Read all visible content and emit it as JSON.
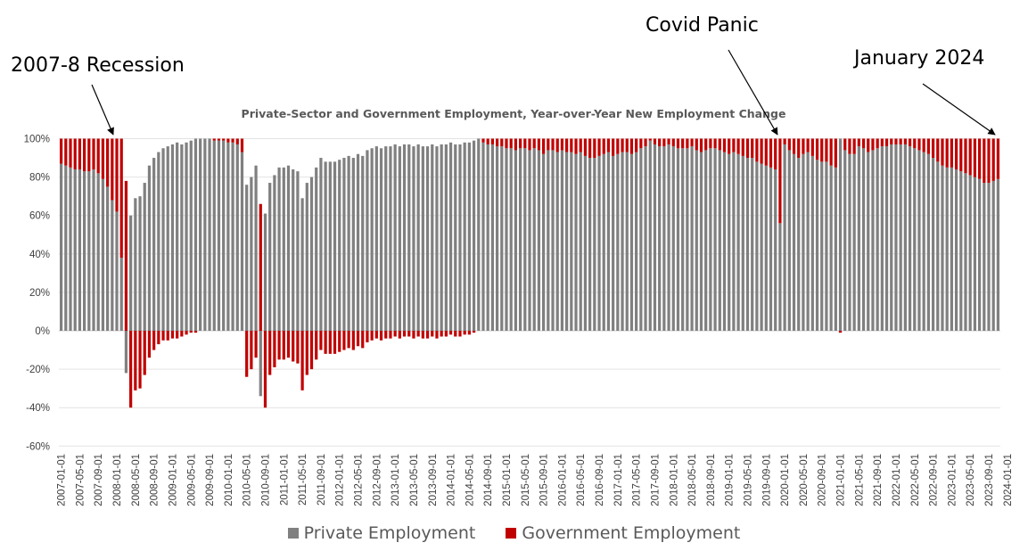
{
  "annotations": {
    "recession": "2007-8 Recession",
    "covid": "Covid Panic",
    "jan2024": "January 2024"
  },
  "chart_data": {
    "type": "bar",
    "stacked": true,
    "title": "Private-Sector and Government Employment, Year-over-Year New Employment Change",
    "xlabel": "",
    "ylabel": "",
    "ylim": [
      -0.6,
      1.0
    ],
    "y_ticks": [
      -0.6,
      -0.4,
      -0.2,
      0,
      0.2,
      0.4,
      0.6,
      0.8,
      1.0
    ],
    "y_tick_labels": [
      "-60%",
      "-40%",
      "-20%",
      "0%",
      "20%",
      "40%",
      "60%",
      "80%",
      "100%"
    ],
    "grid": true,
    "legend_position": "bottom",
    "x_start": "2007-01",
    "x_end": "2024-01",
    "x_tick_labels": [
      "2007-01-01",
      "2007-05-01",
      "2007-09-01",
      "2008-01-01",
      "2008-05-01",
      "2008-09-01",
      "2009-01-01",
      "2009-05-01",
      "2009-09-01",
      "2010-01-01",
      "2010-05-01",
      "2010-09-01",
      "2011-01-01",
      "2011-05-01",
      "2011-09-01",
      "2012-01-01",
      "2012-05-01",
      "2012-09-01",
      "2013-01-01",
      "2013-05-01",
      "2013-09-01",
      "2014-01-01",
      "2014-05-01",
      "2014-09-01",
      "2015-01-01",
      "2015-05-01",
      "2015-09-01",
      "2016-01-01",
      "2016-05-01",
      "2016-09-01",
      "2017-01-01",
      "2017-05-01",
      "2017-09-01",
      "2018-01-01",
      "2018-05-01",
      "2018-09-01",
      "2019-01-01",
      "2019-05-01",
      "2019-09-01",
      "2020-01-01",
      "2020-05-01",
      "2020-09-01",
      "2021-01-01",
      "2021-05-01",
      "2021-09-01",
      "2022-01-01",
      "2022-05-01",
      "2022-09-01",
      "2023-01-01",
      "2023-05-01",
      "2023-09-01",
      "2024-01-01"
    ],
    "series": [
      {
        "name": "Private Employment",
        "color": "#808080",
        "values": [
          0.87,
          0.86,
          0.85,
          0.84,
          0.84,
          0.83,
          0.83,
          0.84,
          0.82,
          0.79,
          0.75,
          0.68,
          0.62,
          0.38,
          -0.22,
          0.6,
          0.69,
          0.7,
          0.77,
          0.86,
          0.9,
          0.93,
          0.95,
          0.96,
          0.97,
          0.98,
          0.97,
          0.98,
          0.99,
          1.0,
          1.0,
          1.0,
          1.0,
          0.99,
          0.99,
          0.99,
          0.98,
          0.98,
          0.97,
          0.93,
          0.76,
          0.8,
          0.86,
          -0.34,
          0.61,
          0.77,
          0.81,
          0.85,
          0.85,
          0.86,
          0.84,
          0.83,
          0.69,
          0.77,
          0.8,
          0.85,
          0.9,
          0.88,
          0.88,
          0.88,
          0.89,
          0.9,
          0.91,
          0.9,
          0.92,
          0.91,
          0.94,
          0.95,
          0.96,
          0.95,
          0.96,
          0.96,
          0.97,
          0.96,
          0.97,
          0.97,
          0.96,
          0.97,
          0.96,
          0.96,
          0.97,
          0.96,
          0.97,
          0.97,
          0.98,
          0.97,
          0.97,
          0.98,
          0.98,
          0.99,
          1.0,
          0.98,
          0.97,
          0.97,
          0.96,
          0.96,
          0.95,
          0.95,
          0.94,
          0.95,
          0.95,
          0.94,
          0.95,
          0.94,
          0.92,
          0.94,
          0.94,
          0.93,
          0.94,
          0.93,
          0.93,
          0.92,
          0.93,
          0.91,
          0.9,
          0.9,
          0.91,
          0.92,
          0.93,
          0.91,
          0.92,
          0.93,
          0.93,
          0.92,
          0.93,
          0.95,
          0.96,
          0.99,
          0.97,
          0.96,
          0.96,
          0.97,
          0.96,
          0.95,
          0.95,
          0.95,
          0.96,
          0.94,
          0.93,
          0.94,
          0.95,
          0.95,
          0.94,
          0.93,
          0.92,
          0.93,
          0.92,
          0.91,
          0.9,
          0.9,
          0.88,
          0.87,
          0.86,
          0.85,
          0.84,
          0.56,
          0.97,
          0.94,
          0.92,
          0.9,
          0.92,
          0.93,
          0.91,
          0.89,
          0.88,
          0.88,
          0.86,
          0.85,
          1.0,
          0.94,
          0.92,
          0.92,
          0.96,
          0.95,
          0.93,
          0.94,
          0.95,
          0.96,
          0.96,
          0.97,
          0.97,
          0.97,
          0.97,
          0.96,
          0.95,
          0.94,
          0.93,
          0.92,
          0.9,
          0.88,
          0.86,
          0.85,
          0.85,
          0.84,
          0.83,
          0.82,
          0.81,
          0.8,
          0.79,
          0.77,
          0.77,
          0.78,
          0.79
        ]
      },
      {
        "name": "Government Employment",
        "color": "#c00000",
        "values": [
          0.13,
          0.14,
          0.15,
          0.16,
          0.16,
          0.17,
          0.17,
          0.16,
          0.18,
          0.21,
          0.25,
          0.32,
          0.38,
          0.62,
          0.78,
          -0.4,
          -0.31,
          -0.3,
          -0.23,
          -0.14,
          -0.1,
          -0.07,
          -0.05,
          -0.05,
          -0.04,
          -0.04,
          -0.03,
          -0.02,
          -0.01,
          -0.01,
          0.0,
          0.0,
          0.0,
          0.01,
          0.01,
          0.01,
          0.02,
          0.02,
          0.03,
          0.07,
          -0.24,
          -0.2,
          -0.14,
          0.66,
          -0.4,
          -0.23,
          -0.19,
          -0.15,
          -0.15,
          -0.14,
          -0.16,
          -0.17,
          -0.31,
          -0.23,
          -0.2,
          -0.15,
          -0.1,
          -0.12,
          -0.12,
          -0.12,
          -0.11,
          -0.1,
          -0.09,
          -0.1,
          -0.08,
          -0.09,
          -0.06,
          -0.05,
          -0.04,
          -0.05,
          -0.04,
          -0.04,
          -0.03,
          -0.04,
          -0.03,
          -0.03,
          -0.04,
          -0.03,
          -0.04,
          -0.04,
          -0.03,
          -0.04,
          -0.03,
          -0.03,
          -0.02,
          -0.03,
          -0.03,
          -0.02,
          -0.02,
          -0.01,
          0.0,
          0.02,
          0.03,
          0.03,
          0.04,
          0.04,
          0.05,
          0.05,
          0.06,
          0.05,
          0.05,
          0.06,
          0.05,
          0.06,
          0.08,
          0.06,
          0.06,
          0.07,
          0.06,
          0.07,
          0.07,
          0.08,
          0.07,
          0.09,
          0.1,
          0.1,
          0.09,
          0.08,
          0.07,
          0.09,
          0.08,
          0.07,
          0.07,
          0.08,
          0.07,
          0.05,
          0.04,
          0.01,
          0.03,
          0.04,
          0.04,
          0.03,
          0.04,
          0.05,
          0.05,
          0.05,
          0.04,
          0.06,
          0.07,
          0.06,
          0.05,
          0.05,
          0.06,
          0.07,
          0.08,
          0.07,
          0.08,
          0.09,
          0.1,
          0.1,
          0.12,
          0.13,
          0.14,
          0.15,
          0.16,
          0.44,
          0.03,
          0.06,
          0.08,
          0.1,
          0.08,
          0.07,
          0.09,
          0.11,
          0.12,
          0.12,
          0.14,
          0.15,
          -0.01,
          0.06,
          0.08,
          0.08,
          0.04,
          0.05,
          0.07,
          0.06,
          0.05,
          0.04,
          0.04,
          0.03,
          0.03,
          0.03,
          0.03,
          0.04,
          0.05,
          0.06,
          0.07,
          0.08,
          0.1,
          0.12,
          0.14,
          0.15,
          0.15,
          0.16,
          0.17,
          0.18,
          0.19,
          0.2,
          0.21,
          0.23,
          0.23,
          0.22,
          0.21
        ]
      }
    ]
  }
}
